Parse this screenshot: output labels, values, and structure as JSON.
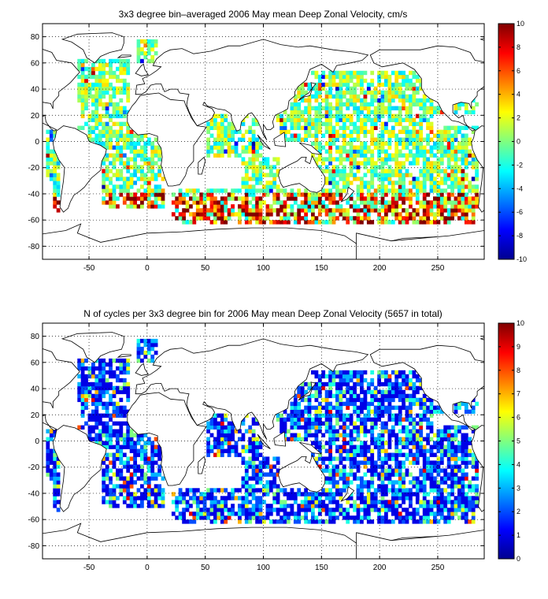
{
  "panels": [
    {
      "id": "velocity",
      "title": "3x3 degree bin–averaged 2006 May mean Deep Zonal Velocity, cm/s",
      "chart_data": {
        "type": "heatmap",
        "x_ticks": [
          -50,
          0,
          50,
          100,
          150,
          200,
          250
        ],
        "y_ticks": [
          80,
          60,
          40,
          20,
          0,
          -20,
          -40,
          -60,
          -80
        ],
        "xlim": [
          -90,
          290
        ],
        "ylim": [
          -90,
          90
        ],
        "grid": true,
        "bin_size_deg": 3,
        "colorbar": {
          "min": -10,
          "max": 10,
          "ticks": [
            10,
            8,
            6,
            4,
            2,
            0,
            -2,
            -4,
            -6,
            -8,
            -10
          ],
          "placement": "right"
        },
        "colormap": "jet"
      }
    },
    {
      "id": "cycles",
      "title": "N of cycles per 3x3 degree bin for 2006 May mean Deep Zonal Velocity (5657 in total)",
      "chart_data": {
        "type": "heatmap",
        "x_ticks": [
          -50,
          0,
          50,
          100,
          150,
          200,
          250
        ],
        "y_ticks": [
          80,
          60,
          40,
          20,
          0,
          -20,
          -40,
          -60,
          -80
        ],
        "xlim": [
          -90,
          290
        ],
        "ylim": [
          -90,
          90
        ],
        "grid": true,
        "bin_size_deg": 3,
        "colorbar": {
          "min": 0,
          "max": 10,
          "ticks": [
            10,
            9,
            8,
            7,
            6,
            5,
            4,
            3,
            2,
            1,
            0
          ],
          "placement": "right"
        },
        "colormap": "jet"
      }
    }
  ],
  "colors": {
    "coast": "#000000",
    "grid": "#000000",
    "background": "#ffffff"
  }
}
